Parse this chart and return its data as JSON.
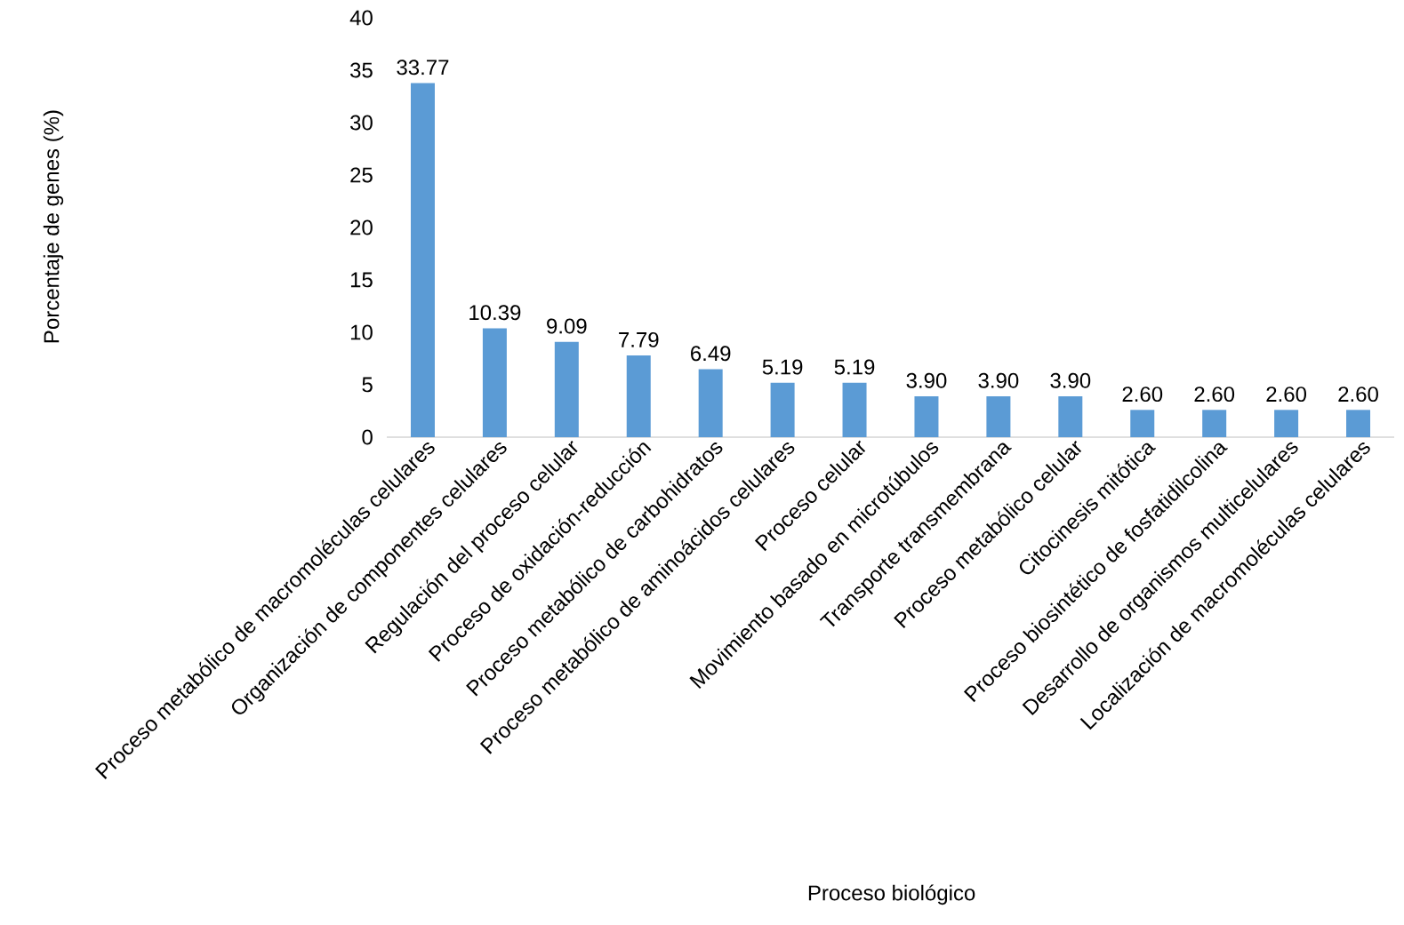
{
  "chart_data": {
    "type": "bar",
    "xlabel": "Proceso biológico",
    "ylabel": "Porcentaje de genes (%)",
    "categories": [
      "Proceso metabólico de macromoléculas celulares",
      "Organización de componentes celulares",
      "Regulación del proceso celular",
      "Proceso de oxidación-reducción",
      "Proceso metabólico de carbohidratos",
      "Proceso metabólico de aminoácidos celulares",
      "Proceso celular",
      "Movimiento basado en microtúbulos",
      "Transporte transmembrana",
      "Proceso metabólico celular",
      "Citocinesis mitótica",
      "Proceso biosintético de fosfatidilcolina",
      "Desarrollo de organismos multicelulares",
      "Localización de macromoléculas celulares"
    ],
    "values": [
      33.77,
      10.39,
      9.09,
      7.79,
      6.49,
      5.19,
      5.19,
      3.9,
      3.9,
      3.9,
      2.6,
      2.6,
      2.6,
      2.6
    ],
    "value_labels": [
      "33.77",
      "10.39",
      "9.09",
      "7.79",
      "6.49",
      "5.19",
      "5.19",
      "3.90",
      "3.90",
      "3.90",
      "2.60",
      "2.60",
      "2.60",
      "2.60"
    ],
    "color": "#5b9bd5",
    "ylim": [
      0,
      40
    ],
    "yticks": [
      0,
      5,
      10,
      15,
      20,
      25,
      30,
      35,
      40
    ],
    "grid": false
  }
}
